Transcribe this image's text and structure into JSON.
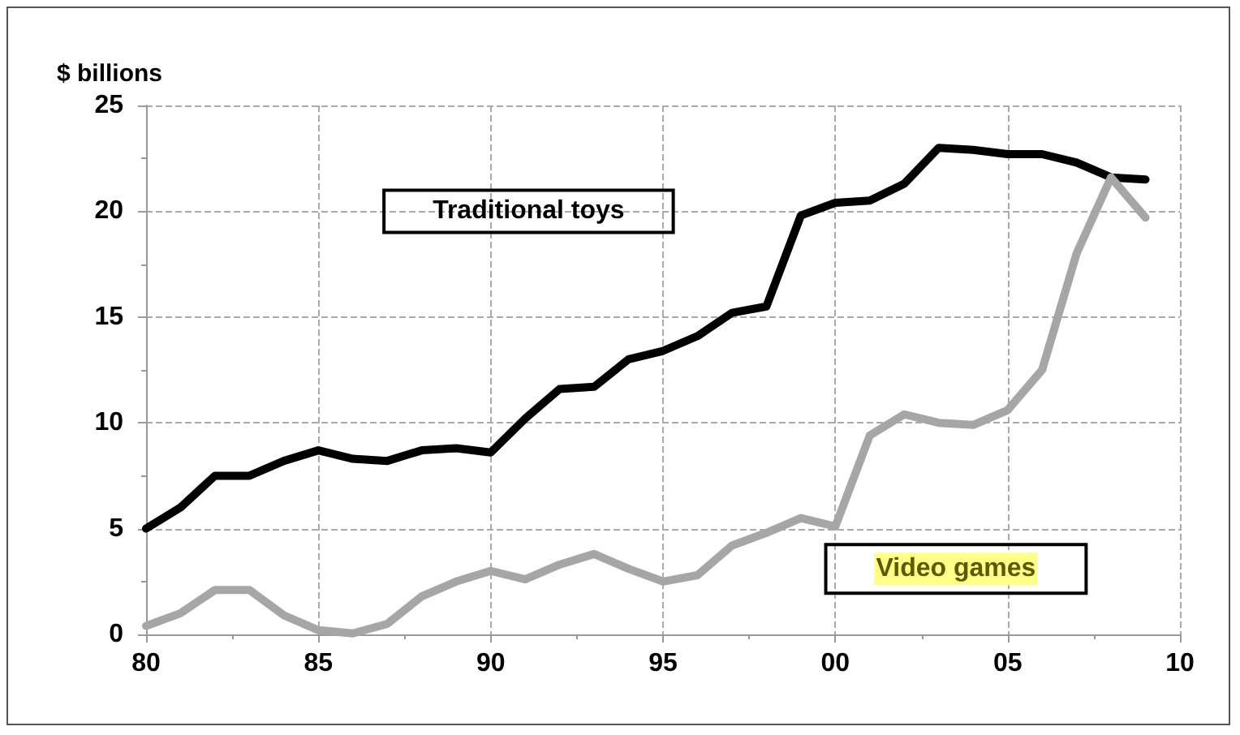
{
  "chart_data": {
    "type": "line",
    "ylabel": "$ billions",
    "x": [
      1980,
      1981,
      1982,
      1983,
      1984,
      1985,
      1986,
      1987,
      1988,
      1989,
      1990,
      1991,
      1992,
      1993,
      1994,
      1995,
      1996,
      1997,
      1998,
      1999,
      2000,
      2001,
      2002,
      2003,
      2004,
      2005,
      2006,
      2007,
      2008,
      2009
    ],
    "series": [
      {
        "name": "Traditional toys",
        "color": "#000000",
        "values": [
          5.0,
          6.0,
          7.5,
          7.5,
          8.2,
          8.7,
          8.3,
          8.2,
          8.7,
          8.8,
          8.6,
          10.2,
          11.6,
          11.7,
          13.0,
          13.4,
          14.1,
          15.2,
          15.5,
          19.8,
          20.4,
          20.5,
          21.3,
          23.0,
          22.9,
          22.7,
          22.7,
          22.3,
          21.6,
          21.5
        ]
      },
      {
        "name": "Video games",
        "color": "#a6a6a6",
        "values": [
          0.4,
          1.0,
          2.1,
          2.1,
          0.9,
          0.2,
          0.05,
          0.5,
          1.8,
          2.5,
          3.0,
          2.6,
          3.3,
          3.8,
          3.1,
          2.5,
          2.8,
          4.2,
          4.8,
          5.5,
          5.1,
          9.4,
          10.4,
          10.0,
          9.9,
          10.6,
          12.5,
          18.0,
          21.6,
          19.7
        ]
      }
    ],
    "xlim": [
      1980,
      2010
    ],
    "xticks": [
      {
        "value": 1980,
        "label": "80"
      },
      {
        "value": 1985,
        "label": "85"
      },
      {
        "value": 1990,
        "label": "90"
      },
      {
        "value": 1995,
        "label": "95"
      },
      {
        "value": 2000,
        "label": "00"
      },
      {
        "value": 2005,
        "label": "05"
      },
      {
        "value": 2010,
        "label": "10"
      }
    ],
    "ylim": [
      0,
      25
    ],
    "yticks": [
      0,
      5,
      10,
      15,
      20,
      25
    ],
    "grid": true,
    "legend": false,
    "marker": "none",
    "line_style": "solid"
  }
}
